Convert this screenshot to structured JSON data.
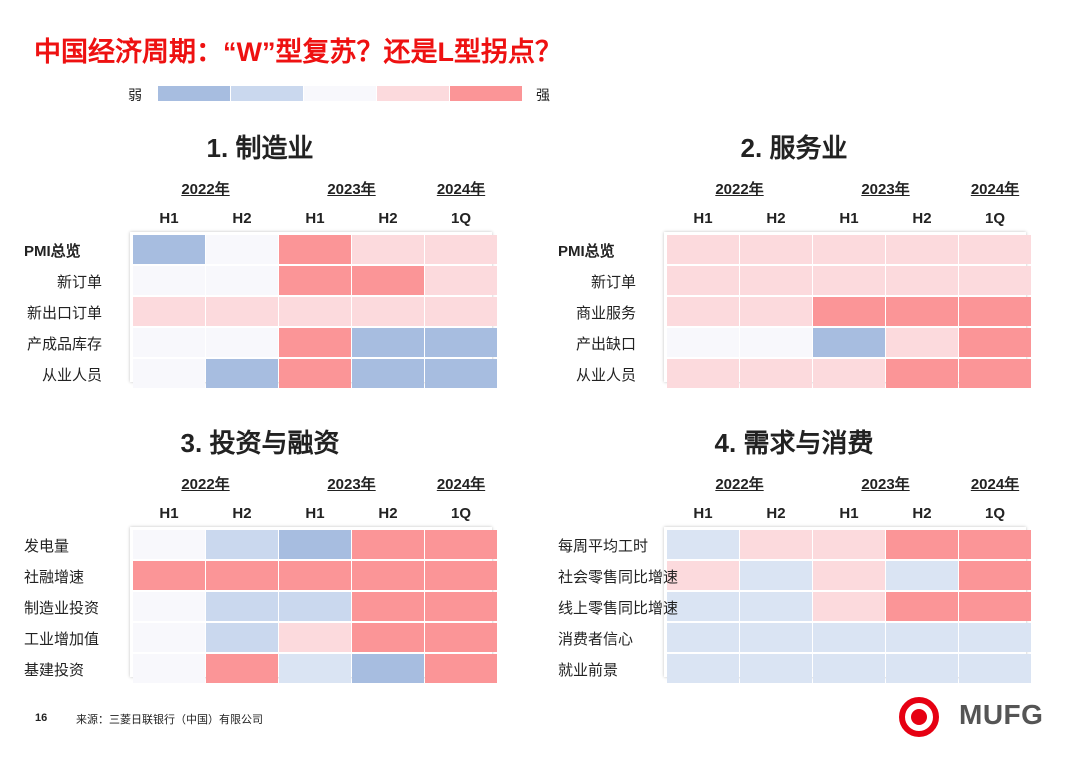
{
  "title": "中国经济周期：“W”型复苏？还是L型拐点？",
  "legend": {
    "weak_label": "弱",
    "strong_label": "强",
    "colors": [
      "#a7bde0",
      "#cad8ee",
      "#f8f8fc",
      "#fcdadd",
      "#fb9597"
    ]
  },
  "palette": {
    "B": "#a7bde0",
    "b": "#cad8ee",
    "c": "#dae4f3",
    "w": "#f8f8fc",
    "p": "#fcdadd",
    "R": "#fb9597"
  },
  "years": [
    {
      "label": "2022年",
      "span": [
        0,
        1
      ]
    },
    {
      "label": "2023年",
      "span": [
        2,
        3
      ]
    },
    {
      "label": "2024年",
      "span": [
        4,
        4
      ]
    }
  ],
  "halves": [
    "H1",
    "H2",
    "H1",
    "H2",
    "1Q"
  ],
  "panels": [
    {
      "title": "1.  制造业",
      "rows": [
        {
          "label": "PMI总览",
          "align": "left",
          "bold": true,
          "cells": [
            "B",
            "w",
            "R",
            "p",
            "p"
          ]
        },
        {
          "label": "新订单",
          "align": "right",
          "bold": false,
          "cells": [
            "w",
            "w",
            "R",
            "R",
            "p"
          ]
        },
        {
          "label": "新出口订单",
          "align": "right",
          "bold": false,
          "cells": [
            "p",
            "p",
            "p",
            "p",
            "p"
          ]
        },
        {
          "label": "产成品库存",
          "align": "right",
          "bold": false,
          "cells": [
            "w",
            "w",
            "R",
            "B",
            "B"
          ]
        },
        {
          "label": "从业人员",
          "align": "right",
          "bold": false,
          "cells": [
            "w",
            "B",
            "R",
            "B",
            "B"
          ]
        }
      ]
    },
    {
      "title": "2.  服务业",
      "rows": [
        {
          "label": "PMI总览",
          "align": "left",
          "bold": true,
          "cells": [
            "p",
            "p",
            "p",
            "p",
            "p"
          ]
        },
        {
          "label": "新订单",
          "align": "right",
          "bold": false,
          "cells": [
            "p",
            "p",
            "p",
            "p",
            "p"
          ]
        },
        {
          "label": "商业服务",
          "align": "right",
          "bold": false,
          "cells": [
            "p",
            "p",
            "R",
            "R",
            "R"
          ]
        },
        {
          "label": "产出缺口",
          "align": "right",
          "bold": false,
          "cells": [
            "w",
            "w",
            "B",
            "p",
            "R"
          ]
        },
        {
          "label": "从业人员",
          "align": "right",
          "bold": false,
          "cells": [
            "p",
            "p",
            "p",
            "R",
            "R"
          ]
        }
      ]
    },
    {
      "title": "3.  投资与融资",
      "rows": [
        {
          "label": "发电量",
          "align": "left",
          "bold": false,
          "cells": [
            "w",
            "b",
            "B",
            "R",
            "R"
          ]
        },
        {
          "label": "社融增速",
          "align": "left",
          "bold": false,
          "cells": [
            "R",
            "R",
            "R",
            "R",
            "R"
          ]
        },
        {
          "label": "制造业投资",
          "align": "left",
          "bold": false,
          "cells": [
            "w",
            "b",
            "b",
            "R",
            "R"
          ]
        },
        {
          "label": "工业增加值",
          "align": "left",
          "bold": false,
          "cells": [
            "w",
            "b",
            "p",
            "R",
            "R"
          ]
        },
        {
          "label": "基建投资",
          "align": "left",
          "bold": false,
          "cells": [
            "w",
            "R",
            "c",
            "B",
            "R"
          ]
        }
      ]
    },
    {
      "title": "4.  需求与消费",
      "rows": [
        {
          "label": "每周平均工时",
          "align": "left",
          "bold": false,
          "cells": [
            "c",
            "p",
            "p",
            "R",
            "R"
          ]
        },
        {
          "label": "社会零售同比增速",
          "align": "left",
          "bold": false,
          "cells": [
            "p",
            "c",
            "p",
            "c",
            "R"
          ]
        },
        {
          "label": "线上零售同比增速",
          "align": "left",
          "bold": false,
          "cells": [
            "c",
            "c",
            "p",
            "R",
            "R"
          ]
        },
        {
          "label": "消费者信心",
          "align": "left",
          "bold": false,
          "cells": [
            "c",
            "c",
            "c",
            "c",
            "c"
          ]
        },
        {
          "label": "就业前景",
          "align": "left",
          "bold": false,
          "cells": [
            "c",
            "c",
            "c",
            "c",
            "c"
          ]
        }
      ]
    }
  ],
  "footer": {
    "page_number": "16",
    "source": "来源：三菱日联银行（中国）有限公司"
  },
  "logo": {
    "text": "MUFG",
    "color": "#e60012"
  }
}
